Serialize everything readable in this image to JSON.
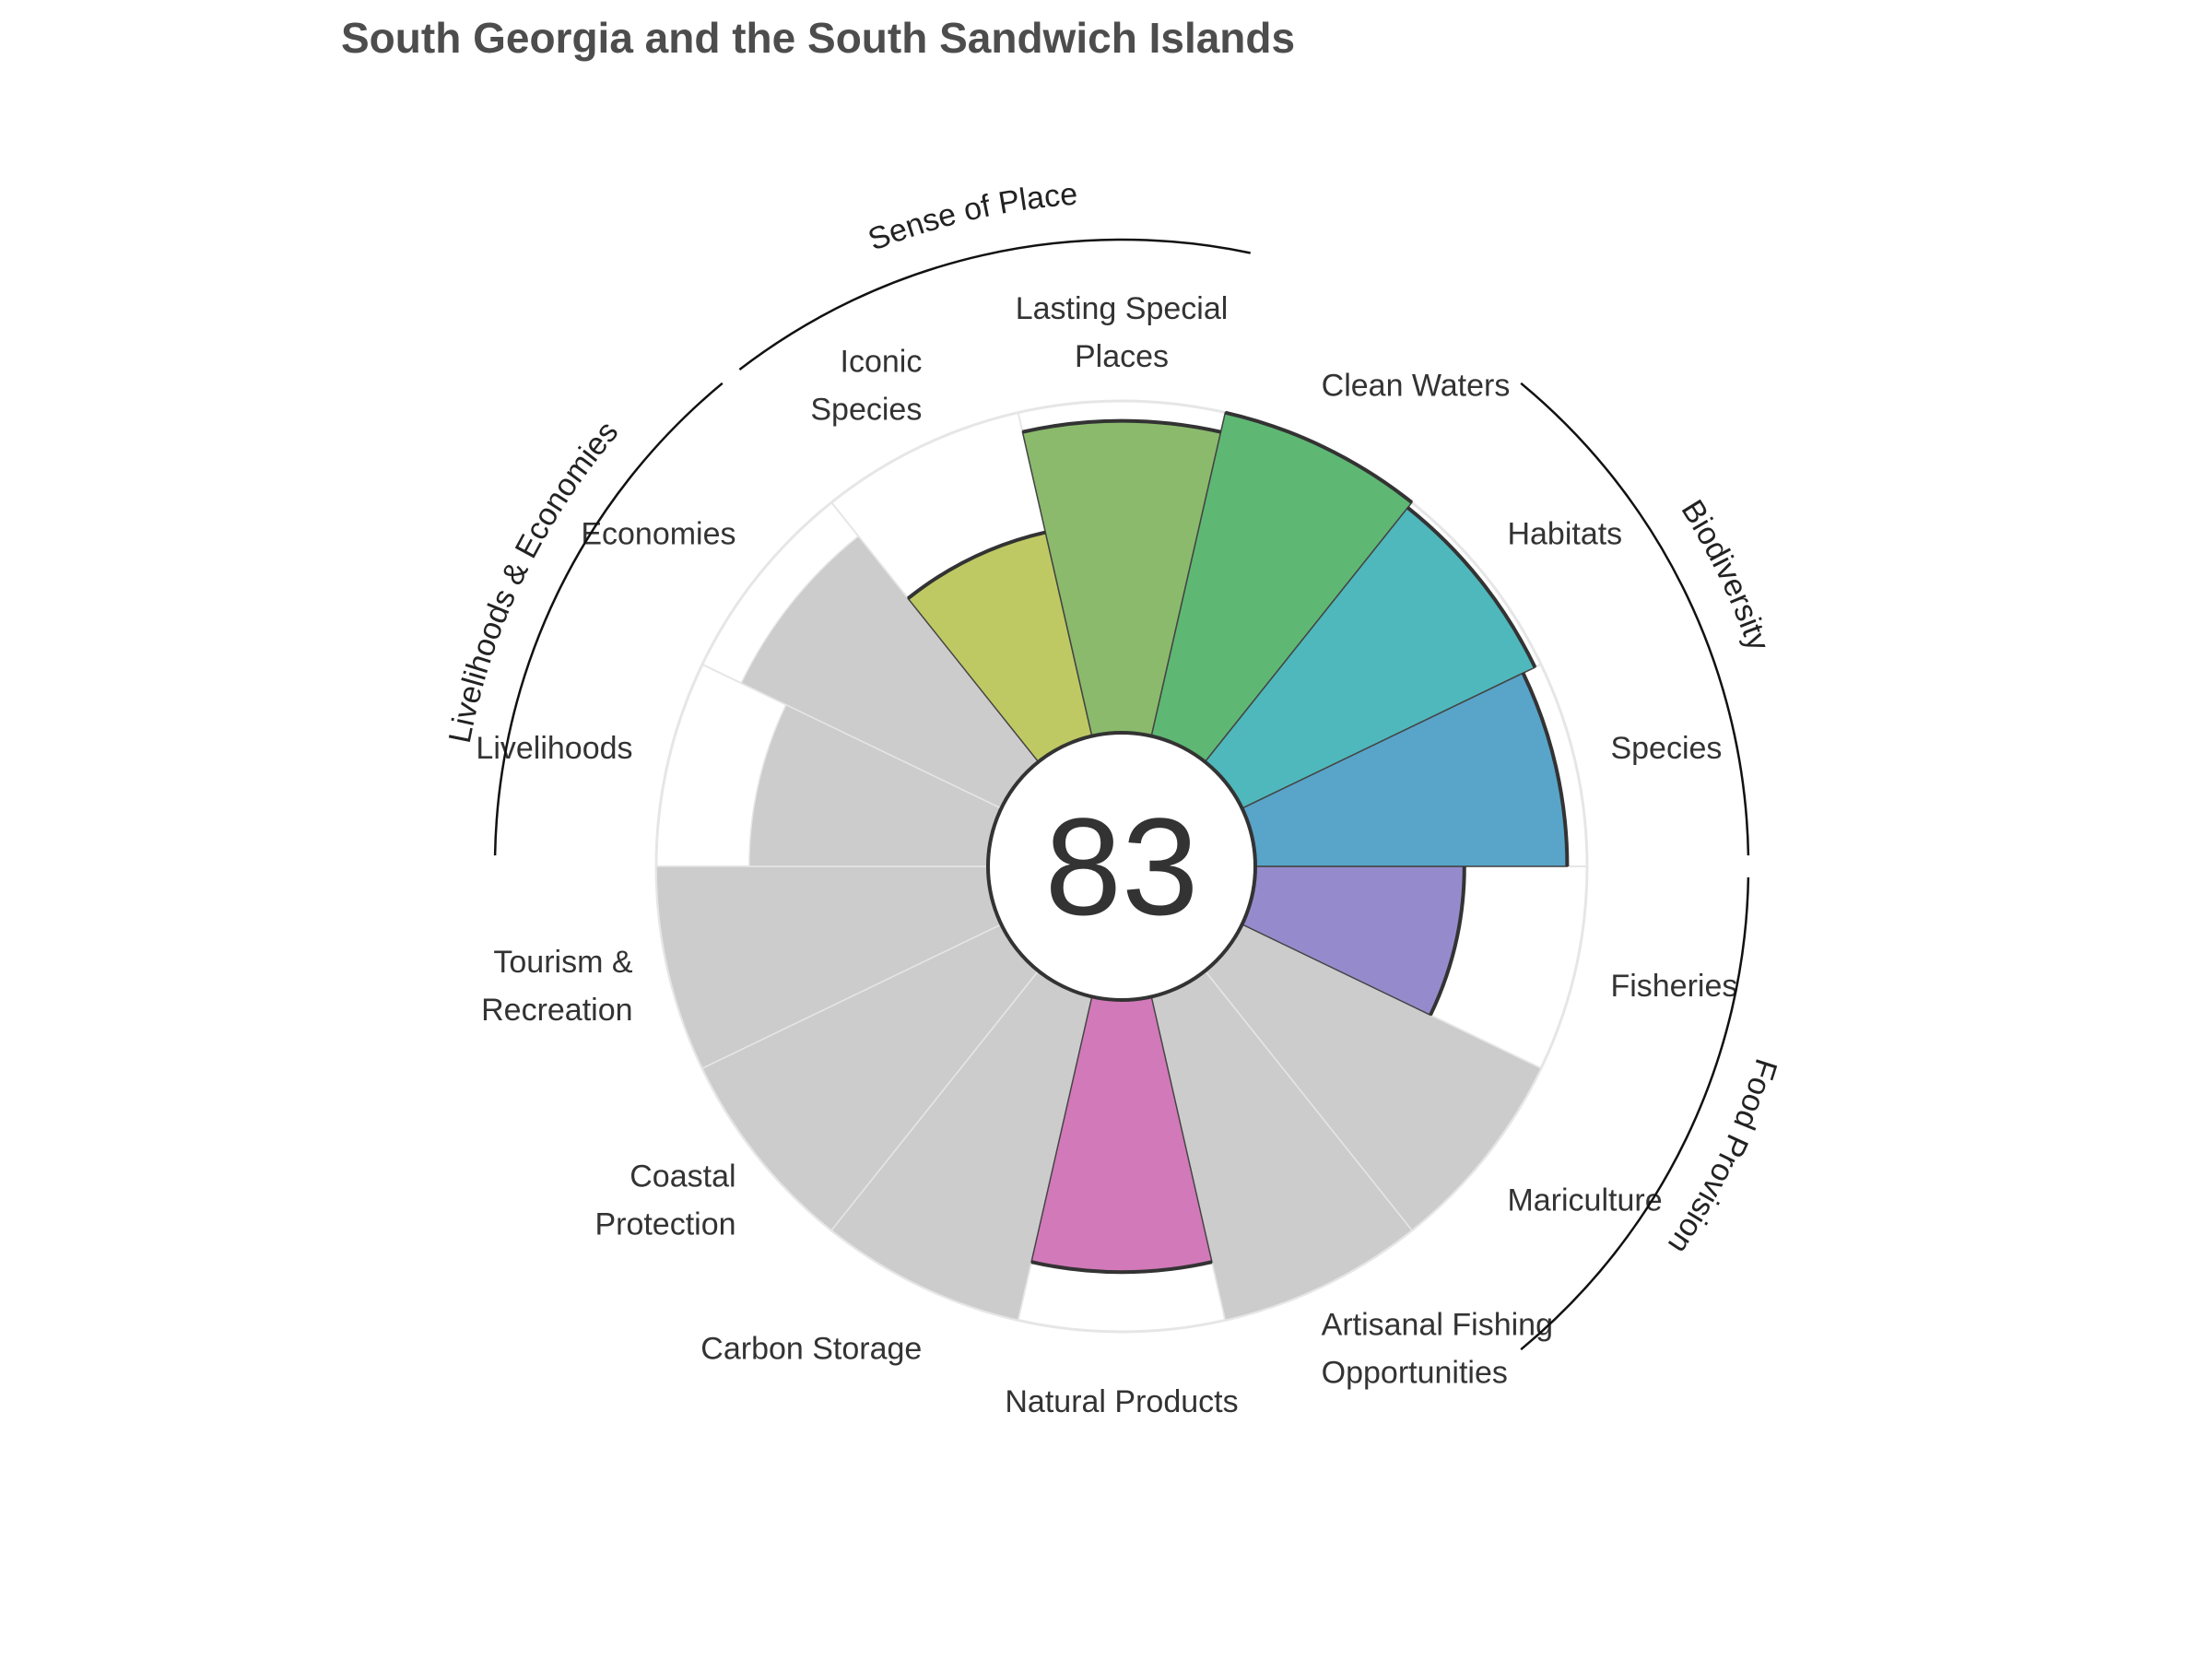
{
  "chart_data": {
    "type": "polar-bar",
    "title": "South Georgia and the South Sandwich Islands",
    "center_score": "83",
    "rmax": 100,
    "colors": {
      "na": "#cccccc",
      "background": "#ffffff",
      "grid": "#e6e6e6",
      "outline": "#333333"
    },
    "goals": [
      {
        "name": "fisheries",
        "label": [
          "Fisheries"
        ],
        "value": 63,
        "color": "#958bcc",
        "available": true
      },
      {
        "name": "mariculture",
        "label": [
          "Mariculture"
        ],
        "value": 100,
        "color": "#cccccc",
        "available": false
      },
      {
        "name": "artisanal-fishing",
        "label": [
          "Artisanal Fishing",
          "Opportunities"
        ],
        "value": 100,
        "color": "#cccccc",
        "available": false
      },
      {
        "name": "natural-products",
        "label": [
          "Natural Products"
        ],
        "value": 82,
        "color": "#d279b9",
        "available": true
      },
      {
        "name": "carbon-storage",
        "label": [
          "Carbon Storage"
        ],
        "value": 100,
        "color": "#cccccc",
        "available": false
      },
      {
        "name": "coastal-protection",
        "label": [
          "Coastal",
          "Protection"
        ],
        "value": 100,
        "color": "#cccccc",
        "available": false
      },
      {
        "name": "tourism-recreation",
        "label": [
          "Tourism &",
          "Recreation"
        ],
        "value": 100,
        "color": "#cccccc",
        "available": false
      },
      {
        "name": "livelihoods",
        "label": [
          "Livelihoods"
        ],
        "value": 72,
        "color": "#cccccc",
        "available": false
      },
      {
        "name": "economies",
        "label": [
          "Economies"
        ],
        "value": 87,
        "color": "#cccccc",
        "available": false
      },
      {
        "name": "iconic-species",
        "label": [
          "Iconic",
          "Species"
        ],
        "value": 63,
        "color": "#bfc963",
        "available": true
      },
      {
        "name": "lasting-special-places",
        "label": [
          "Lasting Special",
          "Places"
        ],
        "value": 94,
        "color": "#8bba6c",
        "available": true
      },
      {
        "name": "clean-waters",
        "label": [
          "Clean Waters"
        ],
        "value": 100,
        "color": "#5eb874",
        "available": true
      },
      {
        "name": "habitats",
        "label": [
          "Habitats"
        ],
        "value": 98,
        "color": "#4fb8bc",
        "available": true
      },
      {
        "name": "species",
        "label": [
          "Species"
        ],
        "value": 94,
        "color": "#59a4c9",
        "available": true
      }
    ],
    "groups": [
      {
        "name": "food-provision",
        "label": "Food Provision",
        "from": 0,
        "to": 2
      },
      {
        "name": "biodiversity",
        "label": "Biodiversity",
        "from": 12,
        "to": 14
      },
      {
        "name": "sense-of-place",
        "label": "Sense of Place",
        "from": 9,
        "to": 11
      },
      {
        "name": "livelihoods-economies",
        "label": "Livelihoods & Economies",
        "from": 7,
        "to": 9
      }
    ]
  }
}
